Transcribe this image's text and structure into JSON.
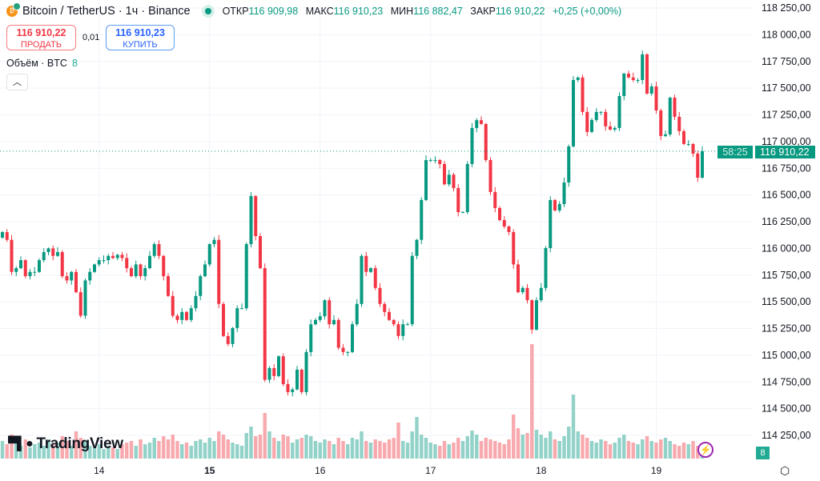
{
  "header": {
    "title": "Bitcoin / TetherUS · 1ч · Binance",
    "ohlc": [
      {
        "label": "ОТКР",
        "value": "116 909,98"
      },
      {
        "label": "МАКС",
        "value": "116 910,23"
      },
      {
        "label": "МИН",
        "value": "116 882,47"
      },
      {
        "label": "ЗАКР",
        "value": "116 910,22"
      }
    ],
    "change": "+0,25 (+0,00%)"
  },
  "trade": {
    "sell_price": "116 910,22",
    "sell_label": "ПРОДАТЬ",
    "spread": "0,01",
    "buy_price": "116 910,23",
    "buy_label": "КУПИТЬ"
  },
  "volume_legend": {
    "label": "Объём · BTC",
    "value": "8"
  },
  "branding": {
    "logo": "TradingView"
  },
  "price_label": {
    "price": "116 910,22",
    "timer": "58:25"
  },
  "volume_badge": "8",
  "colors": {
    "up": "#089981",
    "down": "#f23645",
    "up_vol": "#92d2c8",
    "down_vol": "#f7a9ae"
  },
  "chart_data": {
    "type": "candlestick",
    "title": "Bitcoin / TetherUS · 1ч · Binance",
    "interval": "1h",
    "ylim": [
      114150,
      118320
    ],
    "yticks": [
      "118 250,00",
      "118 000,00",
      "117 750,00",
      "117 500,00",
      "117 250,00",
      "117 000,00",
      "116 750,00",
      "116 500,00",
      "116 250,00",
      "116 000,00",
      "115 750,00",
      "115 500,00",
      "115 250,00",
      "115 000,00",
      "114 750,00",
      "114 500,00",
      "114 250,00"
    ],
    "ytick_values": [
      118250,
      118000,
      117750,
      117500,
      117250,
      117000,
      116750,
      116500,
      116250,
      116000,
      115750,
      115500,
      115250,
      115000,
      114750,
      114500,
      114250
    ],
    "xticks": [
      {
        "label": "14",
        "index": 21
      },
      {
        "label": "15",
        "index": 45
      },
      {
        "label": "16",
        "index": 69
      },
      {
        "label": "17",
        "index": 93
      },
      {
        "label": "18",
        "index": 117
      },
      {
        "label": "19",
        "index": 142
      }
    ],
    "first_open": 116100,
    "closes": [
      116153,
      116080,
      115780,
      115815,
      115890,
      115740,
      115780,
      115780,
      115890,
      115965,
      116000,
      115930,
      115965,
      115740,
      115700,
      115780,
      115590,
      115370,
      115700,
      115780,
      115850,
      115890,
      115890,
      115930,
      115910,
      115940,
      115910,
      115815,
      115740,
      115850,
      115740,
      115815,
      115930,
      116040,
      115930,
      115740,
      115555,
      115370,
      115330,
      115405,
      115330,
      115440,
      115555,
      115740,
      115850,
      116040,
      116080,
      115480,
      115180,
      115105,
      115255,
      115440,
      115440,
      116040,
      116490,
      116115,
      115815,
      114770,
      114880,
      114805,
      114990,
      114730,
      114655,
      114680,
      114865,
      114655,
      115030,
      115290,
      115330,
      115365,
      115515,
      115290,
      115330,
      115070,
      115030,
      115030,
      115290,
      115480,
      115930,
      115780,
      115815,
      115630,
      115480,
      115405,
      115330,
      115290,
      115180,
      115290,
      115290,
      115930,
      116080,
      116453,
      116827,
      116827,
      116827,
      116790,
      116600,
      116690,
      116565,
      116340,
      116340,
      116790,
      117127,
      117200,
      117165,
      116827,
      116528,
      116378,
      116265,
      116205,
      116153,
      115850,
      115590,
      115630,
      115515,
      115240,
      115515,
      115630,
      116003,
      116453,
      116355,
      116415,
      116617,
      116955,
      117576,
      117600,
      117277,
      117090,
      117202,
      117277,
      117277,
      117142,
      117112,
      117127,
      117426,
      117636,
      117600,
      117576,
      117576,
      117816,
      117449,
      117516,
      117291,
      117052,
      117067,
      117411,
      117232,
      117097,
      116977,
      116977,
      116887,
      116662,
      116910
    ],
    "volumes": [
      22,
      18,
      30,
      20,
      16,
      24,
      14,
      18,
      20,
      16,
      24,
      18,
      20,
      28,
      22,
      16,
      34,
      26,
      22,
      16,
      14,
      18,
      12,
      16,
      14,
      12,
      18,
      20,
      22,
      16,
      24,
      18,
      20,
      26,
      22,
      28,
      24,
      30,
      22,
      18,
      20,
      16,
      22,
      24,
      20,
      26,
      22,
      34,
      30,
      24,
      20,
      18,
      16,
      32,
      40,
      28,
      30,
      57,
      34,
      26,
      22,
      30,
      28,
      20,
      24,
      26,
      30,
      28,
      22,
      20,
      24,
      22,
      18,
      26,
      22,
      18,
      26,
      24,
      34,
      22,
      20,
      24,
      22,
      20,
      24,
      26,
      45,
      22,
      20,
      34,
      52,
      30,
      26,
      20,
      18,
      16,
      22,
      18,
      20,
      26,
      22,
      28,
      35,
      30,
      22,
      26,
      24,
      22,
      20,
      18,
      24,
      55,
      38,
      30,
      32,
      143,
      36,
      30,
      26,
      34,
      24,
      22,
      28,
      40,
      80,
      34,
      30,
      26,
      22,
      20,
      24,
      22,
      18,
      20,
      26,
      30,
      22,
      20,
      18,
      24,
      28,
      22,
      20,
      24,
      26,
      22,
      18,
      16,
      20,
      18,
      22,
      16,
      8
    ]
  }
}
